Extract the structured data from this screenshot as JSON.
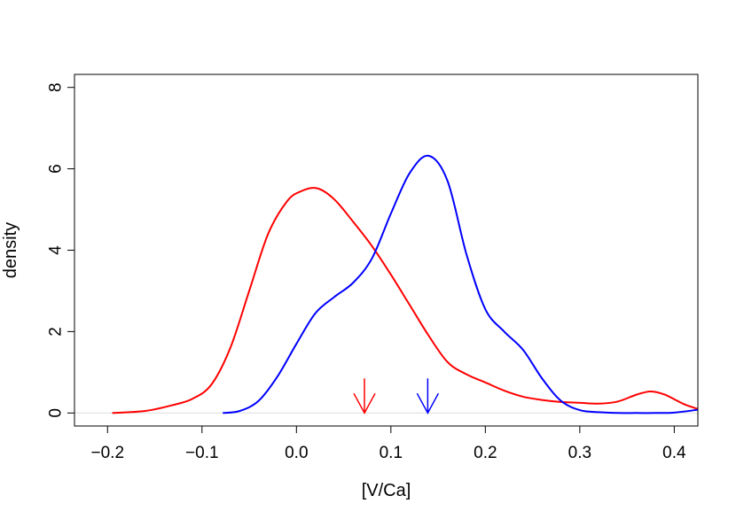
{
  "chart_data": {
    "type": "line",
    "title": "",
    "xlabel": "[V/Ca]",
    "ylabel": "density",
    "xlim": [
      -0.235,
      0.425
    ],
    "ylim": [
      -0.32,
      8.32
    ],
    "x_ticks": [
      -0.2,
      -0.1,
      0.0,
      0.1,
      0.2,
      0.3,
      0.4
    ],
    "x_tick_labels": [
      "−0.2",
      "−0.1",
      "0.0",
      "0.1",
      "0.2",
      "0.3",
      "0.4"
    ],
    "y_ticks": [
      0,
      2,
      4,
      6,
      8
    ],
    "y_tick_labels": [
      "0",
      "2",
      "4",
      "6",
      "8"
    ],
    "baseline": 0,
    "grid": false,
    "series": [
      {
        "name": "red density",
        "color": "#ff0000",
        "x": [
          -0.195,
          -0.16,
          -0.13,
          -0.11,
          -0.09,
          -0.07,
          -0.05,
          -0.03,
          -0.01,
          0.005,
          0.022,
          0.04,
          0.06,
          0.08,
          0.1,
          0.12,
          0.14,
          0.16,
          0.18,
          0.2,
          0.22,
          0.24,
          0.26,
          0.28,
          0.3,
          0.32,
          0.34,
          0.36,
          0.375,
          0.39,
          0.41,
          0.425
        ],
        "y": [
          0.0,
          0.05,
          0.2,
          0.35,
          0.7,
          1.6,
          3.0,
          4.4,
          5.2,
          5.45,
          5.52,
          5.25,
          4.7,
          4.1,
          3.4,
          2.65,
          1.9,
          1.25,
          0.95,
          0.75,
          0.55,
          0.4,
          0.32,
          0.27,
          0.25,
          0.23,
          0.28,
          0.45,
          0.53,
          0.45,
          0.22,
          0.1
        ]
      },
      {
        "name": "blue density",
        "color": "#0000ff",
        "x": [
          -0.078,
          -0.06,
          -0.04,
          -0.02,
          0.0,
          0.02,
          0.04,
          0.06,
          0.08,
          0.1,
          0.12,
          0.14,
          0.16,
          0.18,
          0.2,
          0.22,
          0.24,
          0.26,
          0.28,
          0.3,
          0.32,
          0.34,
          0.36,
          0.38,
          0.4,
          0.425
        ],
        "y": [
          0.0,
          0.05,
          0.3,
          0.9,
          1.7,
          2.45,
          2.85,
          3.2,
          3.8,
          4.9,
          5.9,
          6.32,
          5.7,
          3.9,
          2.55,
          2.0,
          1.55,
          0.85,
          0.3,
          0.07,
          0.02,
          0.0,
          0.0,
          0.0,
          0.01,
          0.08
        ]
      }
    ],
    "markers": [
      {
        "name": "red mean arrow",
        "x": 0.072,
        "color": "#ff0000",
        "label": "↓"
      },
      {
        "name": "blue mean arrow",
        "x": 0.139,
        "color": "#0000ff",
        "label": "↓"
      }
    ]
  }
}
